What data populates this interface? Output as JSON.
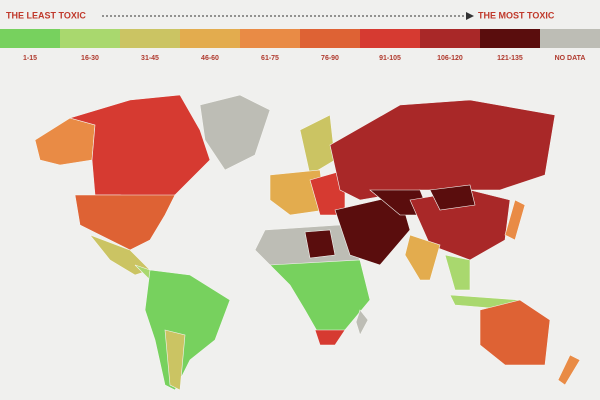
{
  "header": {
    "left": "THE LEAST TOXIC",
    "right": "THE MOST TOXIC"
  },
  "legend": [
    {
      "label": "1-15",
      "color": "#77d15e"
    },
    {
      "label": "16-30",
      "color": "#a9d86e"
    },
    {
      "label": "31-45",
      "color": "#cbc463"
    },
    {
      "label": "46-60",
      "color": "#e3ac4e"
    },
    {
      "label": "61-75",
      "color": "#e98b45"
    },
    {
      "label": "76-90",
      "color": "#de6234"
    },
    {
      "label": "91-105",
      "color": "#d63a31"
    },
    {
      "label": "106-120",
      "color": "#a92828"
    },
    {
      "label": "121-135",
      "color": "#5a0d0d"
    },
    {
      "label": "NO DATA",
      "color": "#bdbdb5"
    }
  ]
}
